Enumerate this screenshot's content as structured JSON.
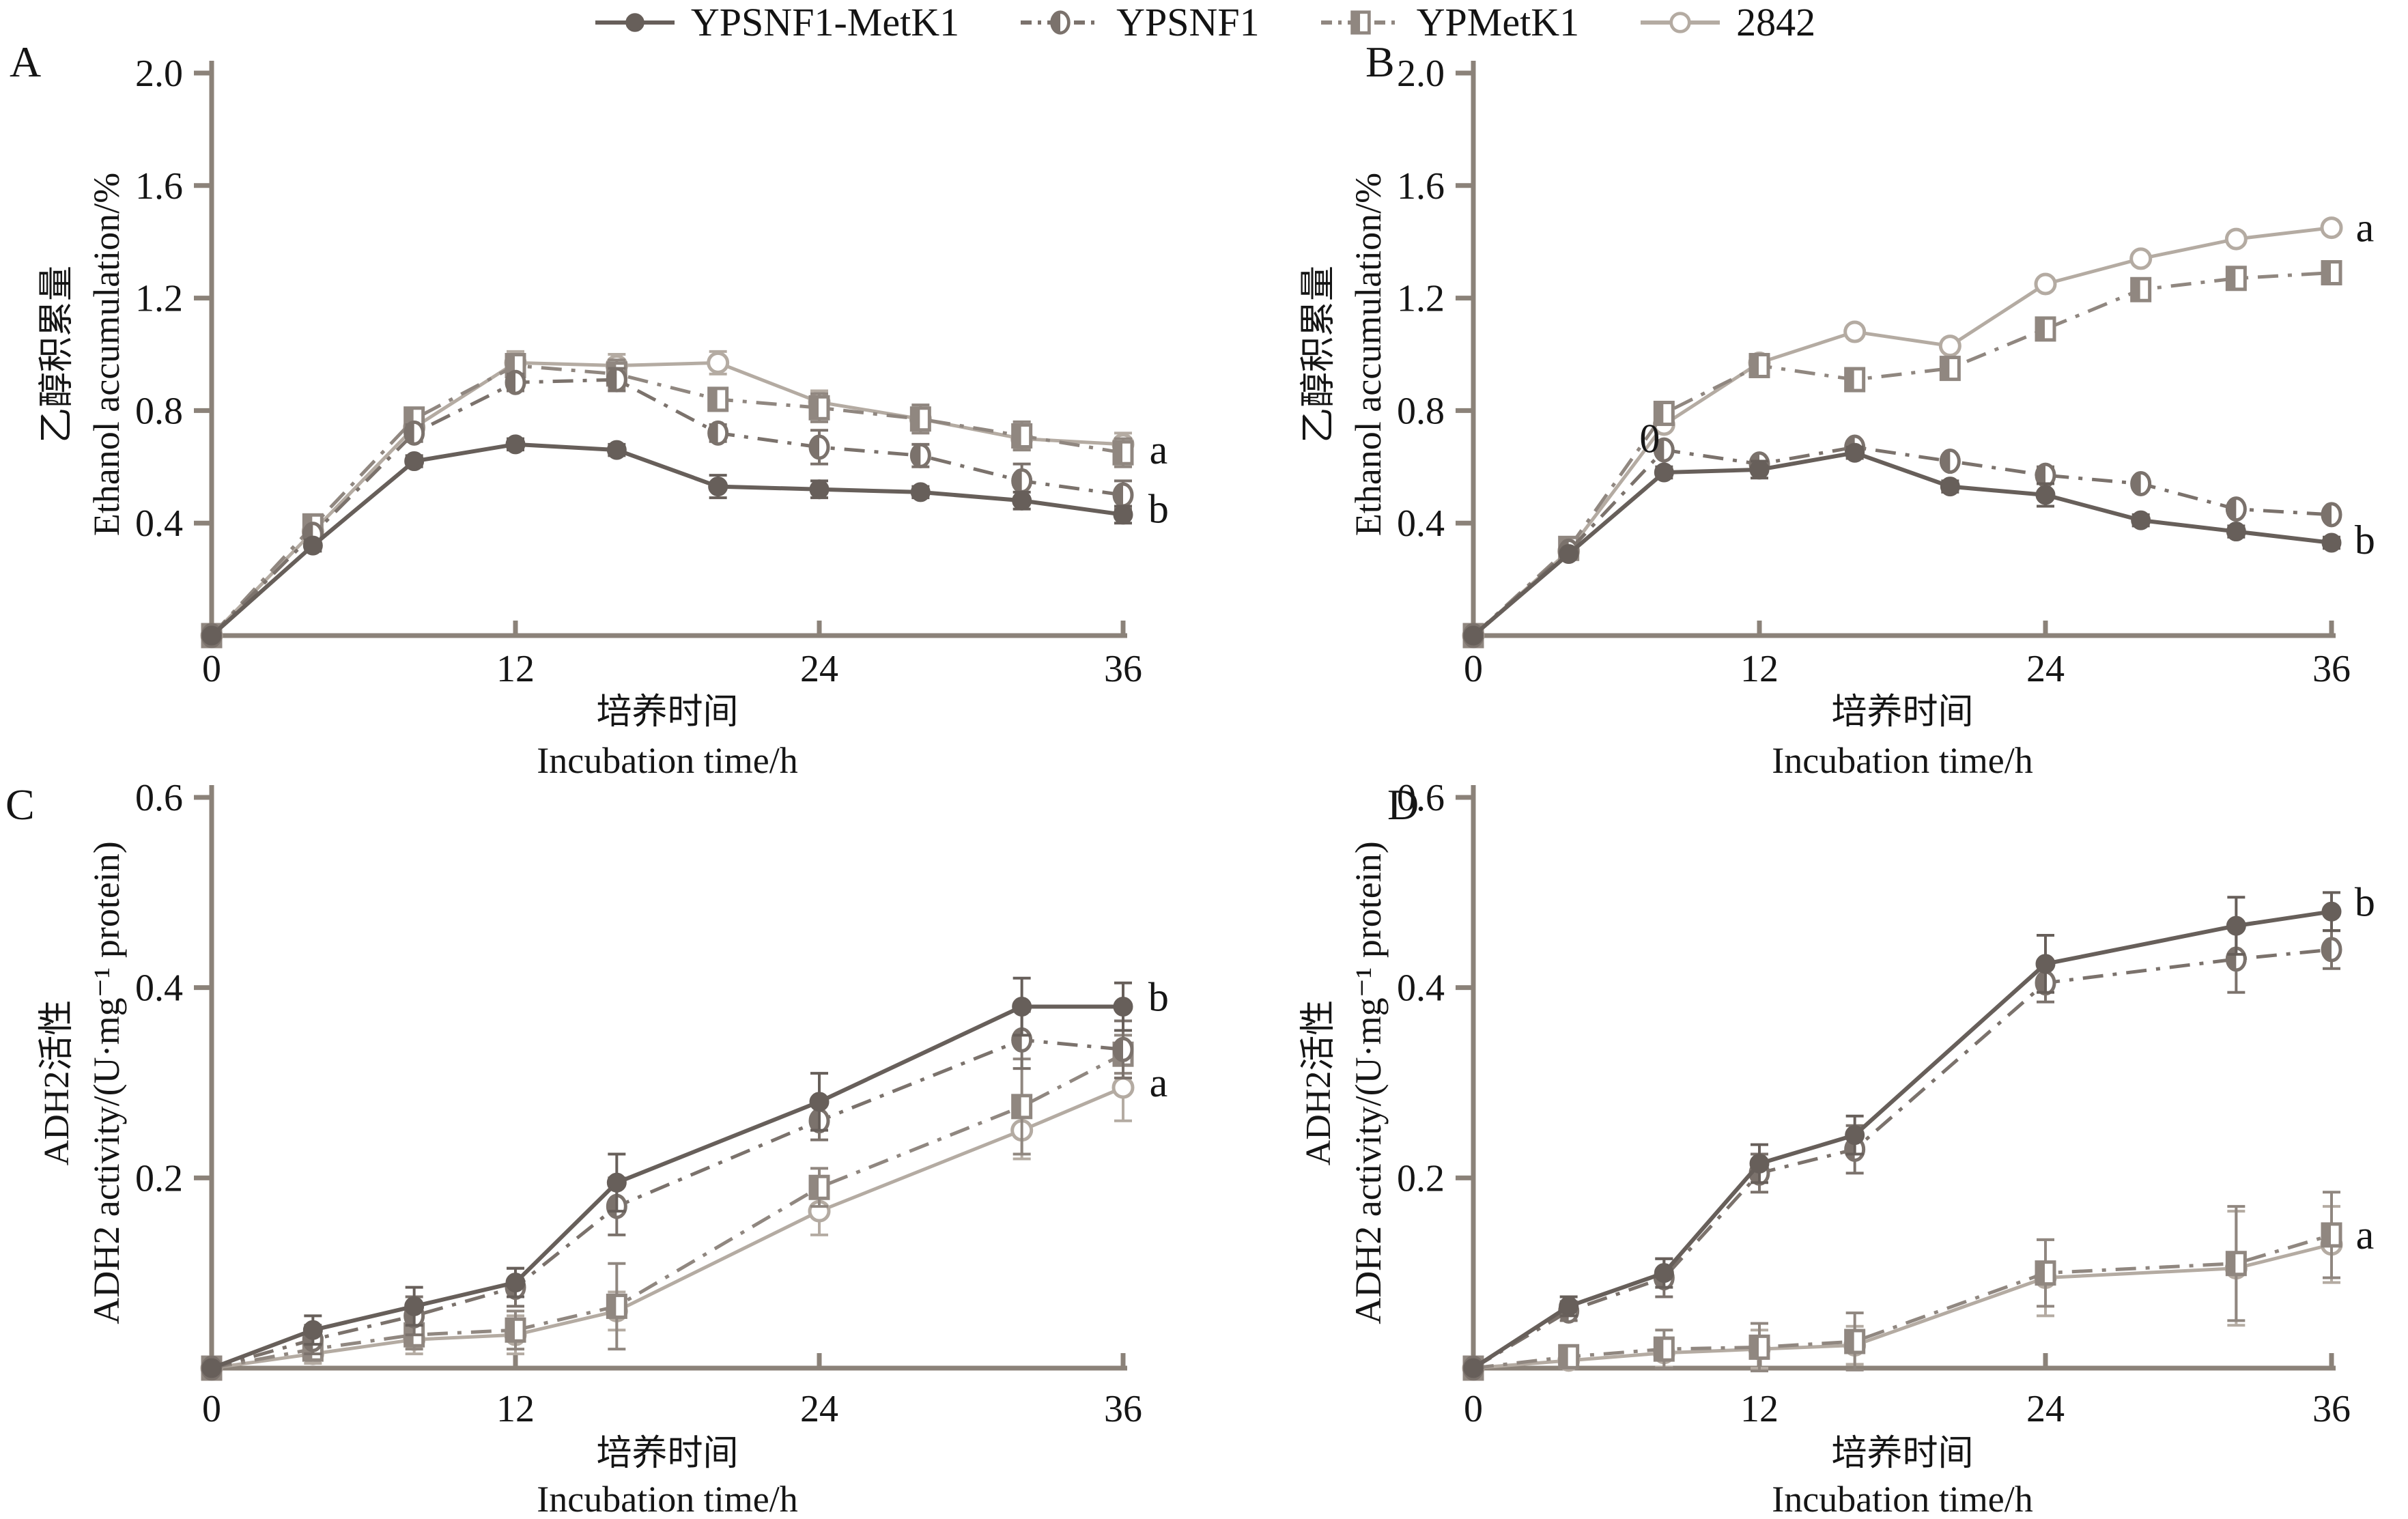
{
  "legend": {
    "items": [
      {
        "label": "YPSNF1-MetK1",
        "marker": "filled-circle",
        "line": "solid",
        "color": "#675f5a"
      },
      {
        "label": "YPSNF1",
        "marker": "half-circle",
        "line": "dashdot",
        "color": "#7b726c"
      },
      {
        "label": "YPMetK1",
        "marker": "half-square",
        "line": "dashdot",
        "color": "#908780"
      },
      {
        "label": "2842",
        "marker": "open-circle",
        "line": "solid",
        "color": "#b4aba2"
      }
    ]
  },
  "axis_text": {
    "x_label_cn": "培养时间",
    "x_label_en": "Incubation time/h",
    "ethanol_label_cn": "乙醇积累量",
    "ethanol_label_en": "Ethanol accumulation/%",
    "adh2_label_cn": "ADH2活性",
    "adh2_label_en": "ADH2 activity/(U·mg⁻¹ protein)"
  },
  "chart_data": [
    {
      "type": "line",
      "panel_label": "A",
      "ylabel_cn": "乙醇积累量",
      "ylabel_en": "Ethanol accumulation/%",
      "xlabel_cn": "培养时间",
      "xlabel_en": "Incubation time/h",
      "x": [
        0,
        4,
        8,
        12,
        16,
        20,
        24,
        28,
        32,
        36
      ],
      "xticks": [
        0,
        12,
        24,
        36
      ],
      "xlim": [
        0,
        36
      ],
      "yticks": [
        "0.4",
        "0.8",
        "1.2",
        "1.6",
        "2.0"
      ],
      "ylim": [
        0,
        2.0
      ],
      "series": [
        {
          "name": "YPSNF1-MetK1",
          "values": [
            0,
            0.32,
            0.62,
            0.68,
            0.66,
            0.53,
            0.52,
            0.51,
            0.48,
            0.43
          ],
          "err": [
            0,
            0.02,
            0.02,
            0.02,
            0.02,
            0.04,
            0.03,
            0.02,
            0.03,
            0.03
          ]
        },
        {
          "name": "YPSNF1",
          "values": [
            0,
            0.36,
            0.72,
            0.9,
            0.91,
            0.72,
            0.67,
            0.64,
            0.55,
            0.5
          ],
          "err": [
            0,
            0.02,
            0.03,
            0.03,
            0.04,
            0.03,
            0.06,
            0.04,
            0.06,
            0.05
          ]
        },
        {
          "name": "YPMetK1",
          "values": [
            0,
            0.39,
            0.77,
            0.96,
            0.93,
            0.84,
            0.81,
            0.77,
            0.71,
            0.65
          ],
          "err": [
            0,
            0.03,
            0.03,
            0.04,
            0.05,
            0.04,
            0.05,
            0.05,
            0.05,
            0.05
          ]
        },
        {
          "name": "2842",
          "values": [
            0,
            0.37,
            0.74,
            0.97,
            0.96,
            0.97,
            0.83,
            0.77,
            0.7,
            0.68
          ],
          "err": [
            0,
            0.02,
            0.03,
            0.04,
            0.04,
            0.04,
            0.04,
            0.04,
            0.04,
            0.04
          ]
        }
      ],
      "annotations": [
        {
          "text": "a",
          "x": 37.4,
          "y": 0.66
        },
        {
          "text": "b",
          "x": 37.4,
          "y": 0.45
        }
      ]
    },
    {
      "type": "line",
      "panel_label": "B",
      "ylabel_cn": "乙醇积累量",
      "ylabel_en": "Ethanol accumulation/%",
      "xlabel_cn": "培养时间",
      "xlabel_en": "Incubation time/h",
      "x": [
        0,
        4,
        8,
        12,
        16,
        20,
        24,
        28,
        32,
        36
      ],
      "xticks": [
        0,
        12,
        24,
        36
      ],
      "xlim": [
        0,
        36
      ],
      "yticks": [
        "0.4",
        "0.8",
        "1.2",
        "1.6",
        "2.0"
      ],
      "ylim": [
        0,
        2.0
      ],
      "series": [
        {
          "name": "YPSNF1-MetK1",
          "values": [
            0,
            0.29,
            0.58,
            0.59,
            0.65,
            0.53,
            0.5,
            0.41,
            0.37,
            0.33
          ],
          "err": [
            0,
            0.01,
            0.02,
            0.03,
            0.02,
            0.02,
            0.04,
            0.02,
            0.02,
            0.02
          ]
        },
        {
          "name": "YPSNF1",
          "values": [
            0,
            0.3,
            0.66,
            0.61,
            0.67,
            0.62,
            0.57,
            0.54,
            0.45,
            0.43
          ],
          "err": [
            0,
            0.01,
            0.02,
            0.02,
            0.02,
            0.02,
            0.03,
            0.02,
            0.02,
            0.02
          ]
        },
        {
          "name": "YPMetK1",
          "values": [
            0,
            0.31,
            0.79,
            0.96,
            0.91,
            0.95,
            1.09,
            1.23,
            1.27,
            1.29
          ],
          "err": [
            0,
            0.01,
            0.02,
            0.02,
            0.02,
            0.02,
            0.02,
            0.02,
            0.02,
            0.02
          ]
        },
        {
          "name": "2842",
          "values": [
            0,
            0.3,
            0.75,
            0.97,
            1.08,
            1.03,
            1.25,
            1.34,
            1.41,
            1.45
          ],
          "err": [
            0,
            0.01,
            0.02,
            0.02,
            0.02,
            0.02,
            0.02,
            0.02,
            0.02,
            0.02
          ]
        }
      ],
      "annotations": [
        {
          "text": "a",
          "x": 37.4,
          "y": 1.45
        },
        {
          "text": "b",
          "x": 37.4,
          "y": 0.34
        },
        {
          "text": "0",
          "x": 7.4,
          "y": 0.7,
          "color": "#000000"
        }
      ]
    },
    {
      "type": "line",
      "panel_label": "C",
      "ylabel_cn": "ADH2活性",
      "ylabel_en": "ADH2 activity/(U·mg⁻¹ protein)",
      "xlabel_cn": "培养时间",
      "xlabel_en": "Incubation time/h",
      "x": [
        0,
        4,
        8,
        12,
        16,
        24,
        32,
        36
      ],
      "xticks": [
        0,
        12,
        24,
        36
      ],
      "xlim": [
        0,
        36
      ],
      "yticks": [
        "0.2",
        "0.4",
        "0.6"
      ],
      "ylim": [
        0,
        0.6
      ],
      "series": [
        {
          "name": "YPSNF1-MetK1",
          "values": [
            0,
            0.04,
            0.065,
            0.09,
            0.195,
            0.28,
            0.38,
            0.38
          ],
          "err": [
            0,
            0.015,
            0.02,
            0.015,
            0.03,
            0.03,
            0.03,
            0.025
          ]
        },
        {
          "name": "YPSNF1",
          "values": [
            0,
            0.03,
            0.055,
            0.085,
            0.17,
            0.26,
            0.345,
            0.335
          ],
          "err": [
            0,
            0.015,
            0.02,
            0.02,
            0.03,
            0.02,
            0.03,
            0.03
          ]
        },
        {
          "name": "YPMetK1",
          "values": [
            0,
            0.02,
            0.035,
            0.04,
            0.065,
            0.19,
            0.275,
            0.33
          ],
          "err": [
            0,
            0.01,
            0.015,
            0.02,
            0.045,
            0.02,
            0.05,
            0.02
          ]
        },
        {
          "name": "2842",
          "values": [
            0,
            0.015,
            0.03,
            0.035,
            0.06,
            0.165,
            0.25,
            0.295
          ],
          "err": [
            0,
            0.01,
            0.015,
            0.02,
            0.02,
            0.025,
            0.03,
            0.035
          ]
        }
      ],
      "annotations": [
        {
          "text": "b",
          "x": 37.4,
          "y": 0.39
        },
        {
          "text": "a",
          "x": 37.4,
          "y": 0.3
        }
      ]
    },
    {
      "type": "line",
      "panel_label": "D",
      "ylabel_cn": "ADH2活性",
      "ylabel_en": "ADH2 activity/(U·mg⁻¹ protein)",
      "xlabel_cn": "培养时间",
      "xlabel_en": "Incubation time/h",
      "x": [
        0,
        4,
        8,
        12,
        16,
        24,
        32,
        36
      ],
      "xticks": [
        0,
        12,
        24,
        36
      ],
      "xlim": [
        0,
        36
      ],
      "yticks": [
        "0.2",
        "0.4",
        "0.6"
      ],
      "ylim": [
        0,
        0.6
      ],
      "series": [
        {
          "name": "YPSNF1-MetK1",
          "values": [
            0,
            0.065,
            0.1,
            0.215,
            0.245,
            0.425,
            0.465,
            0.48
          ],
          "err": [
            0,
            0.01,
            0.015,
            0.02,
            0.02,
            0.03,
            0.03,
            0.02
          ]
        },
        {
          "name": "YPSNF1",
          "values": [
            0,
            0.06,
            0.095,
            0.205,
            0.23,
            0.405,
            0.43,
            0.44
          ],
          "err": [
            0,
            0.01,
            0.02,
            0.02,
            0.025,
            0.02,
            0.035,
            0.02
          ]
        },
        {
          "name": "YPMetK1",
          "values": [
            0,
            0.012,
            0.02,
            0.022,
            0.028,
            0.1,
            0.11,
            0.14
          ],
          "err": [
            0,
            0.008,
            0.02,
            0.025,
            0.03,
            0.035,
            0.06,
            0.045
          ]
        },
        {
          "name": "2842",
          "values": [
            0,
            0.008,
            0.016,
            0.02,
            0.024,
            0.095,
            0.105,
            0.13
          ],
          "err": [
            0,
            0.008,
            0.015,
            0.02,
            0.02,
            0.04,
            0.06,
            0.04
          ]
        }
      ],
      "annotations": [
        {
          "text": "b",
          "x": 37.4,
          "y": 0.49
        },
        {
          "text": "a",
          "x": 37.4,
          "y": 0.14
        }
      ]
    }
  ]
}
